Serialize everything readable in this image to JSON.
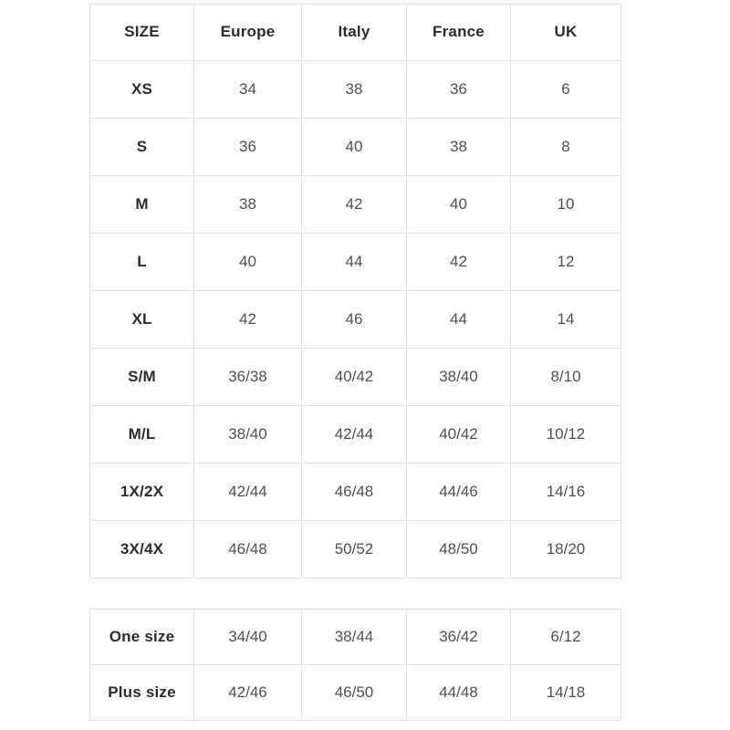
{
  "colors": {
    "background": "#ffffff",
    "border": "#e2e2e2",
    "label_text": "#2c2c35",
    "value_text": "#50505a"
  },
  "size_chart": {
    "headers": [
      "SIZE",
      "Europe",
      "Italy",
      "France",
      "UK"
    ],
    "rows": [
      {
        "label": "XS",
        "values": [
          "34",
          "38",
          "36",
          "6"
        ]
      },
      {
        "label": "S",
        "values": [
          "36",
          "40",
          "38",
          "8"
        ]
      },
      {
        "label": "M",
        "values": [
          "38",
          "42",
          "40",
          "10"
        ]
      },
      {
        "label": "L",
        "values": [
          "40",
          "44",
          "42",
          "12"
        ]
      },
      {
        "label": "XL",
        "values": [
          "42",
          "46",
          "44",
          "14"
        ]
      },
      {
        "label": "S/M",
        "values": [
          "36/38",
          "40/42",
          "38/40",
          "8/10"
        ]
      },
      {
        "label": "M/L",
        "values": [
          "38/40",
          "42/44",
          "40/42",
          "10/12"
        ]
      },
      {
        "label": "1X/2X",
        "values": [
          "42/44",
          "46/48",
          "44/46",
          "14/16"
        ]
      },
      {
        "label": "3X/4X",
        "values": [
          "46/48",
          "50/52",
          "48/50",
          "18/20"
        ]
      }
    ]
  },
  "secondary_chart": {
    "rows": [
      {
        "label": "One size",
        "values": [
          "34/40",
          "38/44",
          "36/42",
          "6/12"
        ]
      },
      {
        "label": "Plus size",
        "values": [
          "42/46",
          "46/50",
          "44/48",
          "14/18"
        ]
      }
    ]
  }
}
